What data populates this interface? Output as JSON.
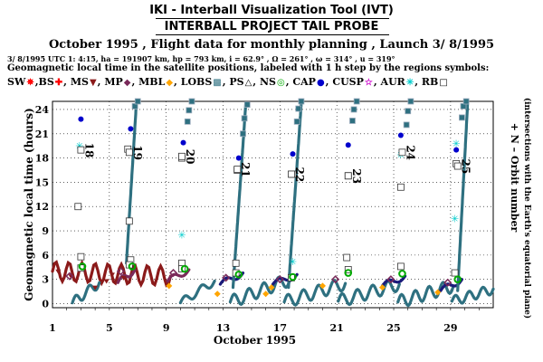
{
  "header": {
    "title": "IKI - Interball Visualization Tool (IVT)",
    "subtitle": "INTERBALL PROJECT TAIL PROBE",
    "flight_line": "October  1995 ,  Flight data for monthly planning ,   Launch  3/ 8/1995",
    "orbit_line": "3/ 8/1995 UTC  1: 4:15, ha = 191907 km, hp =     793 km, i = 62.9° , Ω = 261° , ω = 314° , u = 319°",
    "description": "Geomagnetic local time in the satellite positions, labeled with 1 h step by the regions symbols:"
  },
  "legend": [
    {
      "label": "SW",
      "icon": "sun-icon",
      "symbol": "✵",
      "color": "#ff0000"
    },
    {
      "label": ",BS",
      "icon": "cross-icon",
      "symbol": "✚",
      "color": "#ff0000"
    },
    {
      "label": ", MS",
      "icon": "triangle-down-icon",
      "symbol": "▼",
      "color": "#8b1a1a"
    },
    {
      "label": ", MP",
      "icon": "diamond-icon",
      "symbol": "◆",
      "color": "#7a2a5a"
    },
    {
      "label": ", MBL",
      "icon": "filled-diamond-icon",
      "symbol": "◆",
      "color": "#ffa500"
    },
    {
      "label": ", LOBS",
      "icon": "striped-square-icon",
      "symbol": "▩",
      "color": "#2e7080"
    },
    {
      "label": ", PS",
      "icon": "triangle-up-icon",
      "symbol": "△",
      "color": "#000000"
    },
    {
      "label": ", NS",
      "icon": "green-ring-icon",
      "symbol": "◎",
      "color": "#00aa00"
    },
    {
      "label": ", CAP",
      "icon": "dot-icon",
      "symbol": "●",
      "color": "#0000cc"
    },
    {
      "label": ", CUSP",
      "icon": "star-icon",
      "symbol": "☆",
      "color": "#cc00cc"
    },
    {
      "label": ", AUR",
      "icon": "asterisk-icon",
      "symbol": "✳",
      "color": "#00cccc"
    },
    {
      "label": ", RB",
      "icon": "open-square-icon",
      "symbol": "□",
      "color": "#000000"
    }
  ],
  "chart_data": {
    "type": "scatter",
    "xlabel": "October  1995",
    "ylabel": "Geomagnetic local time (hours)",
    "right_label_1": "+ N  –  Orbit number",
    "right_label_2": "(intersections with the Earth's equatorial plane)",
    "xlim": [
      1,
      32
    ],
    "ylim": [
      -0.5,
      25
    ],
    "x_ticks": [
      1,
      5,
      9,
      13,
      17,
      21,
      25,
      29
    ],
    "y_ticks": [
      0,
      3,
      6,
      9,
      12,
      15,
      18,
      21,
      24
    ],
    "grid": true,
    "orbit_markers": [
      {
        "n": "18",
        "day": 3.0,
        "h": 19.0
      },
      {
        "n": "19",
        "day": 6.4,
        "h": 18.7
      },
      {
        "n": "20",
        "day": 10.1,
        "h": 18.2
      },
      {
        "n": "21",
        "day": 14.0,
        "h": 16.6
      },
      {
        "n": "22",
        "day": 17.8,
        "h": 16.0
      },
      {
        "n": "23",
        "day": 21.8,
        "h": 15.8
      },
      {
        "n": "24",
        "day": 25.6,
        "h": 18.7
      },
      {
        "n": "25",
        "day": 29.5,
        "h": 17.0
      }
    ],
    "series": [
      {
        "region": "CAP",
        "points": [
          [
            3.0,
            22.8
          ],
          [
            6.5,
            21.6
          ],
          [
            10.2,
            19.9
          ],
          [
            14.1,
            18.0
          ],
          [
            17.9,
            18.5
          ],
          [
            21.8,
            19.6
          ],
          [
            25.5,
            20.8
          ],
          [
            29.4,
            19.0
          ]
        ]
      },
      {
        "region": "RB",
        "points": [
          [
            2.8,
            12.0
          ],
          [
            6.4,
            10.2
          ],
          [
            3.0,
            5.8
          ],
          [
            6.5,
            5.4
          ],
          [
            10.1,
            5.0
          ],
          [
            13.9,
            5.0
          ],
          [
            17.8,
            3.2
          ],
          [
            21.7,
            5.7
          ],
          [
            25.5,
            4.6
          ],
          [
            29.3,
            3.8
          ],
          [
            3.0,
            4.4
          ],
          [
            6.4,
            4.8
          ],
          [
            10.1,
            4.3
          ],
          [
            13.9,
            3.8
          ],
          [
            21.8,
            4.2
          ],
          [
            25.5,
            14.4
          ],
          [
            29.4,
            17.3
          ],
          [
            21.8,
            15.8
          ],
          [
            17.9,
            16.0
          ],
          [
            14.0,
            16.5
          ],
          [
            10.1,
            18.0
          ],
          [
            6.3,
            19.1
          ]
        ]
      },
      {
        "region": "AUR",
        "points": [
          [
            2.9,
            19.5
          ],
          [
            10.1,
            8.5
          ],
          [
            17.9,
            5.2
          ],
          [
            29.3,
            10.5
          ],
          [
            25.5,
            18.4
          ],
          [
            29.4,
            19.8
          ]
        ]
      },
      {
        "region": "NS",
        "points": [
          [
            3.1,
            4.6
          ],
          [
            6.6,
            4.6
          ],
          [
            10.3,
            4.3
          ],
          [
            14.1,
            3.6
          ],
          [
            17.9,
            3.3
          ],
          [
            21.8,
            3.8
          ],
          [
            25.6,
            3.7
          ],
          [
            29.5,
            3.0
          ]
        ]
      },
      {
        "region": "LOBS",
        "points": [
          [
            6.8,
            24.4
          ],
          [
            10.6,
            23.9
          ],
          [
            14.5,
            22.9
          ],
          [
            18.3,
            24.1
          ],
          [
            22.2,
            24.0
          ],
          [
            26.0,
            23.8
          ],
          [
            29.9,
            24.4
          ],
          [
            7.0,
            25.0
          ],
          [
            10.8,
            25.0
          ],
          [
            14.7,
            24.6
          ],
          [
            18.5,
            25.0
          ],
          [
            22.4,
            25.0
          ],
          [
            26.2,
            25.0
          ],
          [
            30.1,
            25.0
          ],
          [
            10.5,
            22.5
          ],
          [
            14.4,
            21.0
          ],
          [
            18.2,
            22.5
          ],
          [
            22.1,
            22.6
          ],
          [
            25.9,
            22.1
          ],
          [
            29.8,
            23.0
          ]
        ]
      },
      {
        "region": "MBL",
        "points": [
          [
            9.2,
            2.2
          ],
          [
            12.6,
            1.2
          ],
          [
            16.4,
            2.0
          ],
          [
            20.0,
            2.2
          ],
          [
            24.2,
            2.0
          ],
          [
            28.1,
            1.4
          ],
          [
            16.0,
            1.2
          ]
        ]
      },
      {
        "region": "MS",
        "points": [
          [
            1.4,
            4.0
          ],
          [
            2.3,
            3.4
          ],
          [
            4.0,
            2.0
          ],
          [
            4.8,
            2.8
          ],
          [
            5.2,
            3.6
          ],
          [
            6.0,
            3.2
          ]
        ]
      },
      {
        "region": "MP",
        "points": [
          [
            2.2,
            3.4
          ],
          [
            5.8,
            4.0
          ],
          [
            9.5,
            3.8
          ],
          [
            13.2,
            3.2
          ],
          [
            17.0,
            3.0
          ],
          [
            20.9,
            3.0
          ],
          [
            24.8,
            3.0
          ],
          [
            28.8,
            2.6
          ]
        ]
      }
    ],
    "tracks": [
      {
        "region": "MS",
        "from": [
          1.0,
          4.0
        ],
        "to": [
          9.3,
          3.4
        ],
        "amp": 1.2,
        "cycles": 9,
        "color": "#8b1a1a"
      },
      {
        "region": "LOBS",
        "from": [
          2.4,
          0.1
        ],
        "to": [
          4.3,
          2.6
        ],
        "amp": 0.6,
        "cycles": 2,
        "color": "#2e7080"
      },
      {
        "region": "LOBS",
        "from": [
          10.0,
          0.1
        ],
        "to": [
          12.4,
          2.8
        ],
        "amp": 0.5,
        "cycles": 2,
        "color": "#2e7080"
      },
      {
        "region": "LOBS",
        "from": [
          13.5,
          0.2
        ],
        "to": [
          17.7,
          3.0
        ],
        "amp": 0.8,
        "cycles": 4,
        "color": "#2e7080"
      },
      {
        "region": "LOBS",
        "from": [
          17.3,
          0.2
        ],
        "to": [
          21.6,
          2.5
        ],
        "amp": 0.8,
        "cycles": 4,
        "color": "#2e7080"
      },
      {
        "region": "LOBS",
        "from": [
          21.1,
          0.3
        ],
        "to": [
          25.4,
          2.4
        ],
        "amp": 0.8,
        "cycles": 4,
        "color": "#2e7080"
      },
      {
        "region": "LOBS",
        "from": [
          25.3,
          0.2
        ],
        "to": [
          29.2,
          2.2
        ],
        "amp": 0.8,
        "cycles": 4,
        "color": "#2e7080"
      },
      {
        "region": "LOBS",
        "from": [
          29.1,
          0.3
        ],
        "to": [
          32.0,
          1.8
        ],
        "amp": 0.6,
        "cycles": 3,
        "color": "#2e7080"
      },
      {
        "region": "MP",
        "from": [
          5.6,
          2.6
        ],
        "to": [
          6.8,
          4.2
        ],
        "amp": 0.4,
        "cycles": 1,
        "color": "#7a2a5a"
      },
      {
        "region": "MP",
        "from": [
          9.1,
          2.8
        ],
        "to": [
          10.6,
          4.2
        ],
        "amp": 0.4,
        "cycles": 1,
        "color": "#7a2a5a"
      },
      {
        "region": "MP",
        "from": [
          12.8,
          2.4
        ],
        "to": [
          14.4,
          3.8
        ],
        "amp": 0.4,
        "cycles": 1,
        "color": "#1a1a7a"
      },
      {
        "region": "MP",
        "from": [
          16.5,
          2.4
        ],
        "to": [
          18.2,
          3.6
        ],
        "amp": 0.4,
        "cycles": 1,
        "color": "#1a1a7a"
      },
      {
        "region": "MP",
        "from": [
          24.2,
          2.2
        ],
        "to": [
          25.8,
          3.4
        ],
        "amp": 0.4,
        "cycles": 1,
        "color": "#1a1a7a"
      },
      {
        "region": "MP",
        "from": [
          28.3,
          1.6
        ],
        "to": [
          29.8,
          3.0
        ],
        "amp": 0.4,
        "cycles": 1,
        "color": "#1a1a7a"
      },
      {
        "region": "LOBS",
        "from": [
          6.2,
          5.0
        ],
        "to": [
          6.9,
          24.8
        ],
        "amp": 0.05,
        "cycles": 1,
        "color": "#2e7080"
      },
      {
        "region": "LOBS",
        "from": [
          13.7,
          2.0
        ],
        "to": [
          14.6,
          24.8
        ],
        "amp": 0.05,
        "cycles": 1,
        "color": "#2e7080"
      },
      {
        "region": "LOBS",
        "from": [
          17.6,
          2.0
        ],
        "to": [
          18.5,
          24.8
        ],
        "amp": 0.05,
        "cycles": 1,
        "color": "#2e7080"
      },
      {
        "region": "LOBS",
        "from": [
          29.5,
          1.6
        ],
        "to": [
          30.2,
          24.8
        ],
        "amp": 0.05,
        "cycles": 1,
        "color": "#2e7080"
      }
    ]
  }
}
